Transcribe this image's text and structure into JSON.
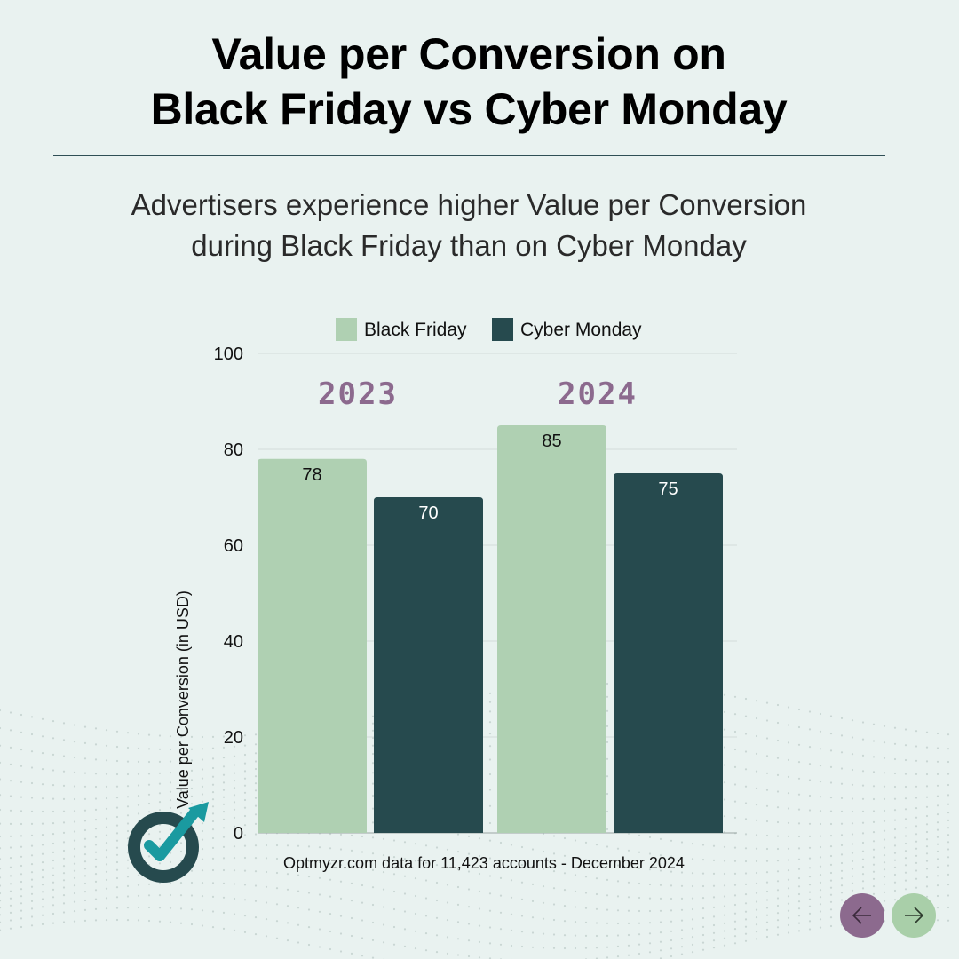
{
  "header": {
    "title_line1": "Value per Conversion on",
    "title_line2": "Black Friday vs Cyber Monday",
    "subtitle_line1": "Advertisers experience higher Value per Conversion",
    "subtitle_line2": "during Black Friday than on Cyber Monday"
  },
  "chart_data": {
    "type": "bar",
    "categories": [
      "2023",
      "2024"
    ],
    "series": [
      {
        "name": "Black Friday",
        "values": [
          78,
          85
        ],
        "color": "#afd0b2",
        "label_color": "#111111"
      },
      {
        "name": "Cyber Monday",
        "values": [
          70,
          75
        ],
        "color": "#264a4e",
        "label_color": "#ffffff"
      }
    ],
    "ylabel": "Value per Conversion (in USD)",
    "xlabel": "",
    "ylim": [
      0,
      100
    ],
    "yticks": [
      0,
      20,
      40,
      60,
      80,
      100
    ],
    "grid": true,
    "legend_position": "top",
    "category_label_color": "#8c6a8e"
  },
  "footnote": "Optmyzr.com data for 11,423 accounts - December 2024",
  "colors": {
    "background": "#e9f2f0",
    "accent_purple": "#8c6a8e",
    "accent_green": "#a9cfa9",
    "dark_teal": "#264a4e",
    "logo_arrow": "#1a9aa0"
  },
  "nav": {
    "prev_icon": "arrow-left-icon",
    "next_icon": "arrow-right-icon"
  },
  "logo_icon": "optmyzr-logo-icon"
}
